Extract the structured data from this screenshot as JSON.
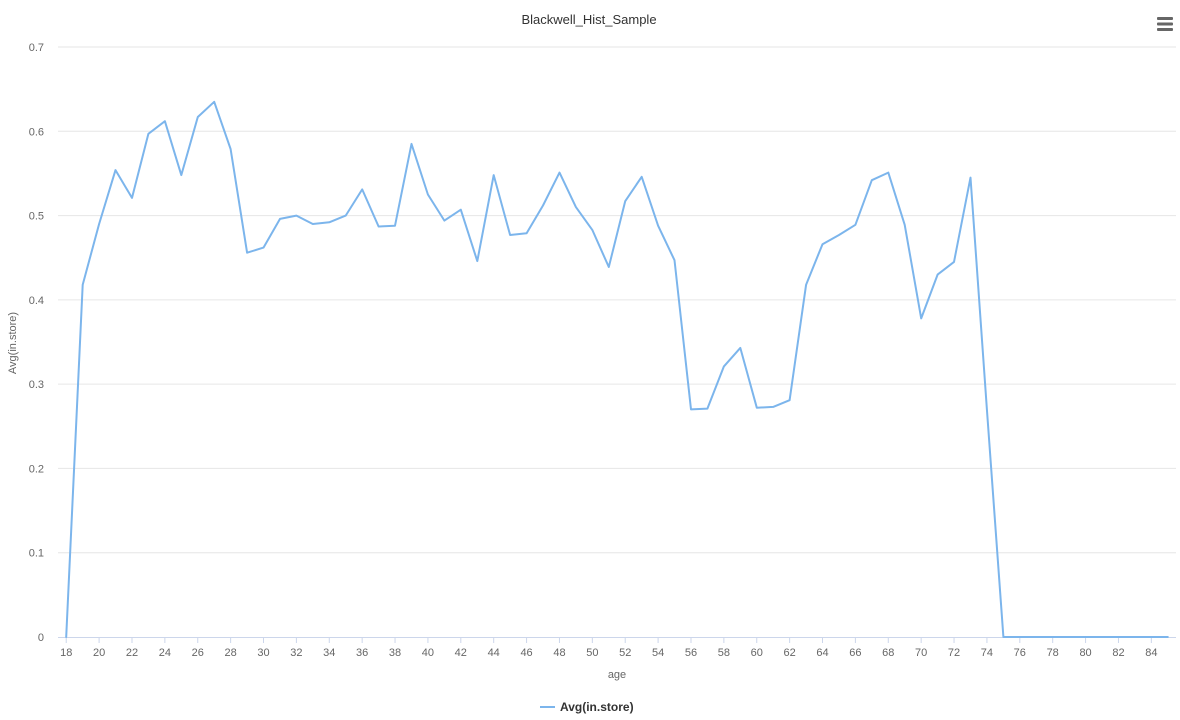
{
  "chart_data": {
    "type": "line",
    "title": "Blackwell_Hist_Sample",
    "xlabel": "age",
    "ylabel": "Avg(in.store)",
    "xlim": [
      18,
      85
    ],
    "ylim": [
      0,
      0.7
    ],
    "y_ticks": [
      "0",
      "0.1",
      "0.2",
      "0.3",
      "0.4",
      "0.5",
      "0.6",
      "0.7"
    ],
    "x_ticks": [
      "18",
      "20",
      "22",
      "24",
      "26",
      "28",
      "30",
      "32",
      "34",
      "36",
      "38",
      "40",
      "42",
      "44",
      "46",
      "48",
      "50",
      "52",
      "54",
      "56",
      "58",
      "60",
      "62",
      "64",
      "66",
      "68",
      "70",
      "72",
      "74",
      "76",
      "78",
      "80",
      "82",
      "84"
    ],
    "grid": true,
    "legend_position": "bottom-center",
    "series": [
      {
        "name": "Avg(in.store)",
        "color": "#7cb5ec",
        "x": [
          18,
          19,
          20,
          21,
          22,
          23,
          24,
          25,
          26,
          27,
          28,
          29,
          30,
          31,
          32,
          33,
          34,
          35,
          36,
          37,
          38,
          39,
          40,
          41,
          42,
          43,
          44,
          45,
          46,
          47,
          48,
          49,
          50,
          51,
          52,
          53,
          54,
          55,
          56,
          57,
          58,
          59,
          60,
          61,
          62,
          63,
          64,
          65,
          66,
          67,
          68,
          69,
          70,
          71,
          72,
          73,
          74,
          75,
          76,
          77,
          78,
          79,
          80,
          81,
          82,
          83,
          84,
          85
        ],
        "values": [
          0,
          0.418,
          0.49,
          0.554,
          0.521,
          0.597,
          0.612,
          0.548,
          0.617,
          0.635,
          0.579,
          0.456,
          0.462,
          0.496,
          0.5,
          0.49,
          0.492,
          0.5,
          0.531,
          0.487,
          0.488,
          0.585,
          0.525,
          0.494,
          0.507,
          0.446,
          0.548,
          0.477,
          0.479,
          0.512,
          0.551,
          0.51,
          0.483,
          0.439,
          0.517,
          0.546,
          0.488,
          0.447,
          0.27,
          0.271,
          0.321,
          0.343,
          0.272,
          0.273,
          0.281,
          0.418,
          0.466,
          0.477,
          0.489,
          0.542,
          0.551,
          0.489,
          0.378,
          0.43,
          0.445,
          0.545,
          0.27,
          0,
          0,
          0,
          0,
          0,
          0,
          0,
          0,
          0,
          0,
          0
        ]
      }
    ]
  },
  "ui": {
    "menu_icon": "hamburger-menu-icon"
  }
}
